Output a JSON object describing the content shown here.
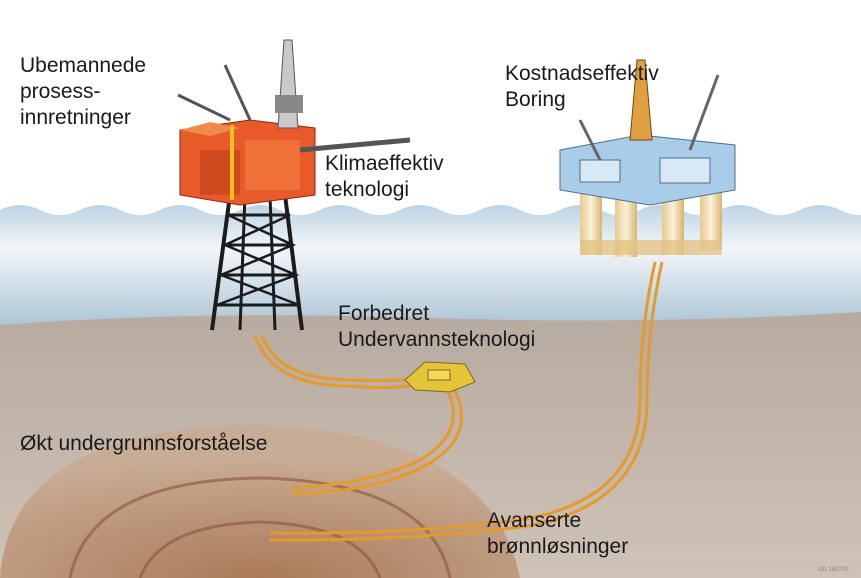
{
  "labels": [
    {
      "lines": [
        "Ubemannede",
        "prosess-",
        "innretninger"
      ]
    },
    {
      "lines": [
        "Kostnadseffektiv",
        "Boring"
      ]
    },
    {
      "lines": [
        "Klimaeffektiv",
        "teknologi"
      ]
    },
    {
      "lines": [
        "Forbedret",
        "Undervannsteknologi"
      ]
    },
    {
      "lines": [
        "Økt undergrunnsforståelse"
      ]
    },
    {
      "lines": [
        "Avanserte",
        "brønnløsninger"
      ]
    }
  ],
  "footer": {
    "code": "DD 180700"
  }
}
